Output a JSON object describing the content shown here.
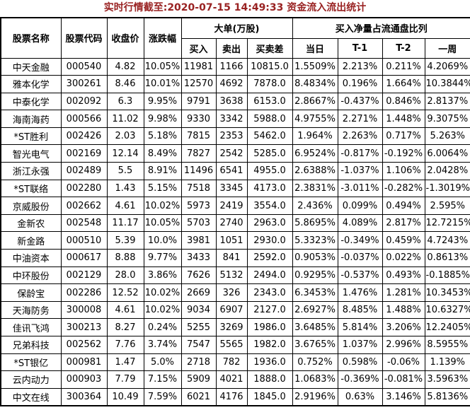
{
  "title": "实时行情截至:2020-07-15 14:49:33 资金流入流出统计",
  "colors": {
    "title_red": "#992222",
    "stock_blue": "#2F6593",
    "border": "#000000",
    "background": "#FFFFFF",
    "text": "#000000"
  },
  "table": {
    "groups": {
      "large_orders": "大单(万股)",
      "net_buy_ratio": "买入净量占流通盘比列"
    },
    "columns": [
      "股票名称",
      "股票代码",
      "收盘价",
      "涨跌幅",
      "买入",
      "卖出",
      "买卖差",
      "当日",
      "T-1",
      "T-2",
      "一周"
    ],
    "column_keys": [
      "stock-name",
      "stock-code",
      "close-price",
      "change-pct",
      "buy",
      "sell",
      "buy-sell-diff",
      "ratio-today",
      "ratio-t1",
      "ratio-t2",
      "ratio-week"
    ],
    "rows": [
      [
        "中天金融",
        "000540",
        "4.82",
        "10.05%",
        "11981",
        "1166",
        "10815.0",
        "1.5509%",
        "2.213%",
        "0.211%",
        "4.2069%"
      ],
      [
        "雅本化学",
        "300261",
        "8.46",
        "10.01%",
        "12570",
        "4692",
        "7878.0",
        "8.4834%",
        "0.196%",
        "1.664%",
        "10.3844%"
      ],
      [
        "中泰化学",
        "002092",
        "6.3",
        "9.95%",
        "9791",
        "3638",
        "6153.0",
        "2.8667%",
        "-0.437%",
        "0.846%",
        "2.8137%"
      ],
      [
        "海南海药",
        "000566",
        "11.02",
        "9.98%",
        "9330",
        "3342",
        "5988.0",
        "4.9755%",
        "2.271%",
        "1.448%",
        "9.3075%"
      ],
      [
        "*ST胜利",
        "002426",
        "2.03",
        "5.18%",
        "7815",
        "2353",
        "5462.0",
        "1.964%",
        "2.263%",
        "0.717%",
        "5.263%"
      ],
      [
        "智光电气",
        "002169",
        "12.14",
        "8.49%",
        "7827",
        "2542",
        "5285.0",
        "6.9524%",
        "-0.817%",
        "-0.192%",
        "6.0064%"
      ],
      [
        "浙江永强",
        "002489",
        "5.5",
        "8.91%",
        "11496",
        "6541",
        "4955.0",
        "2.6388%",
        "-1.037%",
        "1.106%",
        "2.0428%"
      ],
      [
        "*ST联络",
        "002280",
        "1.43",
        "5.15%",
        "7518",
        "3345",
        "4173.0",
        "2.3831%",
        "-3.011%",
        "-0.282%",
        "-1.3019%"
      ],
      [
        "京威股份",
        "002662",
        "4.61",
        "10.02%",
        "5973",
        "2419",
        "3554.0",
        "2.436%",
        "0.099%",
        "0.494%",
        "2.595%"
      ],
      [
        "金新农",
        "002548",
        "11.17",
        "10.05%",
        "5703",
        "2740",
        "2963.0",
        "5.8695%",
        "4.089%",
        "2.817%",
        "12.7215%"
      ],
      [
        "新金路",
        "000510",
        "5.39",
        "10.0%",
        "3981",
        "1051",
        "2930.0",
        "5.3323%",
        "-0.349%",
        "0.459%",
        "4.7243%"
      ],
      [
        "中油资本",
        "000617",
        "8.88",
        "9.77%",
        "3433",
        "841",
        "2592.0",
        "0.9053%",
        "-0.037%",
        "0.022%",
        "0.8613%"
      ],
      [
        "中环股份",
        "002129",
        "28.0",
        "3.86%",
        "7626",
        "5132",
        "2494.0",
        "0.9295%",
        "-0.537%",
        "0.493%",
        "-0.1885%"
      ],
      [
        "保龄宝",
        "002286",
        "12.52",
        "10.02%",
        "2669",
        "326",
        "2343.0",
        "6.3453%",
        "1.476%",
        "1.281%",
        "10.3453%"
      ],
      [
        "天海防务",
        "300008",
        "4.61",
        "10.02%",
        "9034",
        "6907",
        "2127.0",
        "2.6927%",
        "8.485%",
        "1.488%",
        "10.6327%"
      ],
      [
        "佳讯飞鸿",
        "300213",
        "8.27",
        "0.24%",
        "5255",
        "3269",
        "1986.0",
        "3.6485%",
        "5.814%",
        "3.206%",
        "12.2405%"
      ],
      [
        "兄弟科技",
        "002562",
        "7.76",
        "3.74%",
        "7547",
        "5565",
        "1982.0",
        "3.6765%",
        "1.037%",
        "2.996%",
        "8.5955%"
      ],
      [
        "*ST银亿",
        "000981",
        "1.47",
        "5.0%",
        "2718",
        "782",
        "1936.0",
        "0.752%",
        "0.598%",
        "-0.06%",
        "1.139%"
      ],
      [
        "云内动力",
        "000903",
        "7.79",
        "7.15%",
        "5909",
        "4021",
        "1888.0",
        "1.0683%",
        "-0.369%",
        "-0.081%",
        "3.5963%"
      ],
      [
        "中文在线",
        "300364",
        "10.49",
        "7.59%",
        "6021",
        "4176",
        "1845.0",
        "2.9196%",
        "0.63%",
        "3.146%",
        "5.8136%"
      ]
    ]
  }
}
